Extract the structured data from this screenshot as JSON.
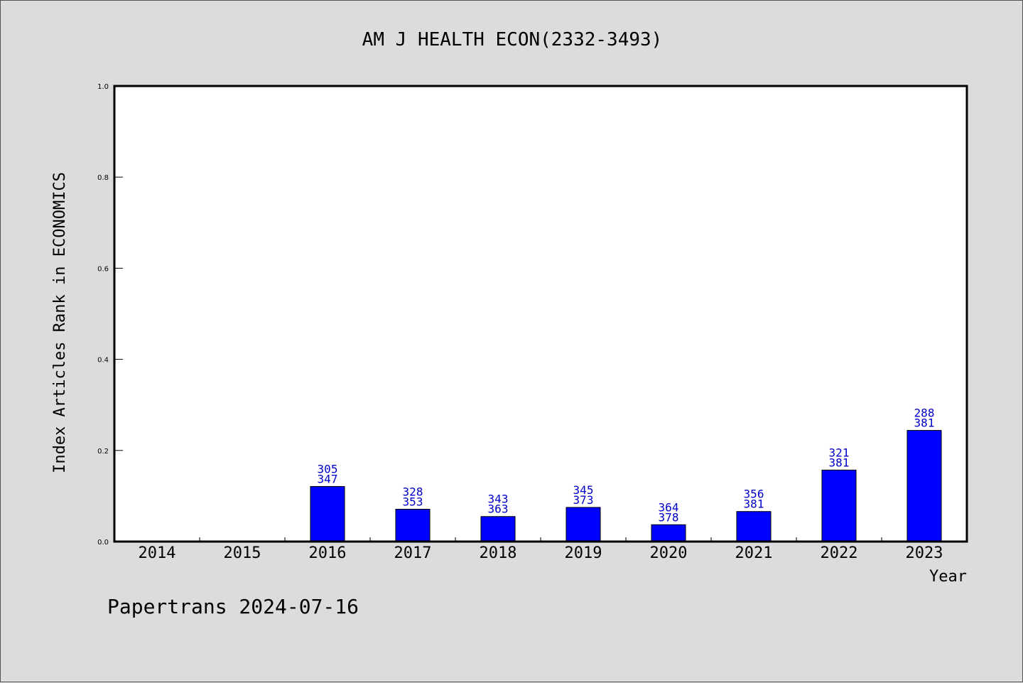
{
  "chart_data": {
    "type": "bar",
    "title": "AM J HEALTH ECON(2332-3493)",
    "xlabel": "Year",
    "ylabel": "Index Articles Rank in ECONOMICS",
    "ylim": [
      0,
      1.0
    ],
    "yticks": [
      "0.0",
      "0.2",
      "0.4",
      "0.6",
      "0.8",
      "1.0"
    ],
    "categories": [
      "2014",
      "2015",
      "2016",
      "2017",
      "2018",
      "2019",
      "2020",
      "2021",
      "2022",
      "2023"
    ],
    "values": [
      null,
      null,
      0.121,
      0.071,
      0.055,
      0.075,
      0.037,
      0.066,
      0.157,
      0.244
    ],
    "labels_top": [
      "",
      "",
      "305",
      "328",
      "343",
      "345",
      "364",
      "356",
      "321",
      "288"
    ],
    "labels_bottom": [
      "",
      "",
      "347",
      "353",
      "363",
      "373",
      "378",
      "381",
      "381",
      "381"
    ],
    "bar_color": "#0000ff",
    "label_color": "#0000cc",
    "grid": false,
    "legend": "none"
  },
  "footer": {
    "text": "Papertrans 2024-07-16"
  }
}
